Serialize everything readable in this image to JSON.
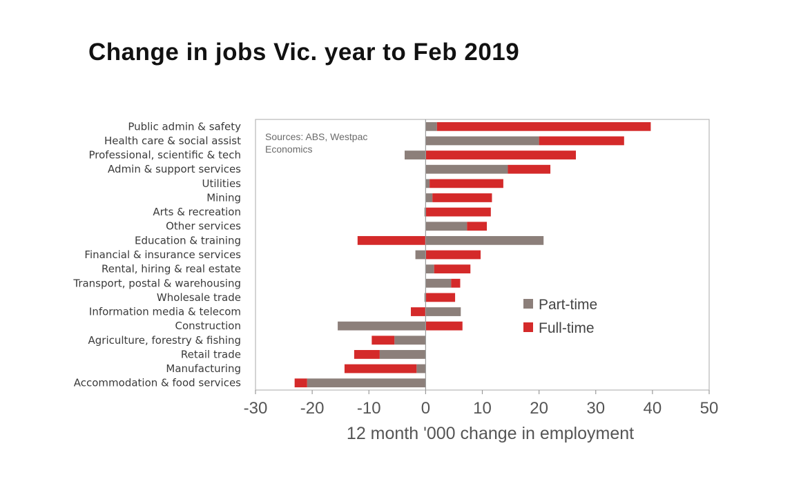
{
  "chart_data": {
    "type": "bar",
    "orientation": "horizontal",
    "stacked": true,
    "title": "Change in jobs Vic. year to Feb 2019",
    "xlabel": "12 month '000 change in employment",
    "xlim": [
      -30,
      50
    ],
    "xticks": [
      "-30",
      "-20",
      "-10",
      "0",
      "10",
      "20",
      "30",
      "40",
      "50"
    ],
    "source_note": [
      "Sources: ABS, Westpac",
      "Economics"
    ],
    "legend_position": "right-middle",
    "categories": [
      "Public admin & safety",
      "Health care & social assist",
      "Professional, scientific & tech",
      "Admin & support services",
      "Utilities",
      "Mining",
      "Arts & recreation",
      "Other services",
      "Education & training",
      "Financial & insurance services",
      "Rental, hiring & real estate",
      "Transport, postal & warehousing",
      "Wholesale trade",
      "Information media & telecom",
      "Construction",
      "Agriculture, forestry & fishing",
      "Retail trade",
      "Manufacturing",
      "Accommodation & food services"
    ],
    "series": [
      {
        "name": "Part-time",
        "color": "#8c7f7a",
        "values": [
          2,
          20,
          -3.7,
          14.5,
          0.7,
          1.2,
          -0.2,
          7.3,
          20.8,
          -1.8,
          1.5,
          4.5,
          -0.2,
          6.2,
          -15.5,
          -5.5,
          -8.1,
          -1.6,
          -20.9
        ]
      },
      {
        "name": "Full-time",
        "color": "#d42a2a",
        "values": [
          37.7,
          15,
          26.5,
          7.5,
          13,
          10.5,
          11.5,
          3.5,
          -12,
          9.7,
          6.4,
          1.6,
          5.2,
          -2.6,
          6.5,
          -4,
          -4.5,
          -12.7,
          -2.2
        ]
      }
    ]
  }
}
